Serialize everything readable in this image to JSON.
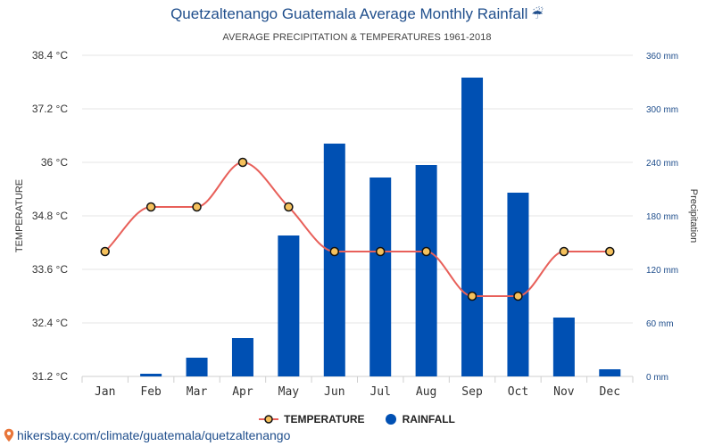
{
  "header": {
    "title": "Quetzaltenango Guatemala Average Monthly Rainfall",
    "title_icon": "☔",
    "subtitle": "AVERAGE PRECIPITATION & TEMPERATURES 1961-2018"
  },
  "legend": {
    "temperature_label": "TEMPERATURE",
    "rainfall_label": "RAINFALL"
  },
  "footer": {
    "link_text": "hikersbay.com/climate/guatemala/quetzaltenango"
  },
  "colors": {
    "bar": "#0050b3",
    "line": "#e8605a",
    "marker_fill": "#f5c15c",
    "grid": "#e6e6e6",
    "title": "#1f4e8c"
  },
  "chart_data": {
    "type": "bar+line",
    "categories": [
      "Jan",
      "Feb",
      "Mar",
      "Apr",
      "May",
      "Jun",
      "Jul",
      "Aug",
      "Sep",
      "Oct",
      "Nov",
      "Dec"
    ],
    "series": [
      {
        "name": "RAINFALL",
        "type": "bar",
        "axis": "right",
        "unit": "mm",
        "values": [
          0,
          3,
          21,
          43,
          158,
          261,
          223,
          237,
          335,
          206,
          66,
          8
        ]
      },
      {
        "name": "TEMPERATURE",
        "type": "line",
        "axis": "left",
        "unit": "°C",
        "values": [
          34,
          35,
          35,
          36,
          35,
          34,
          34,
          34,
          33,
          33,
          34,
          34
        ]
      }
    ],
    "left_axis": {
      "title": "TEMPERATURE",
      "range": [
        31.2,
        38.4
      ],
      "ticks": [
        31.2,
        32.4,
        33.6,
        34.8,
        36,
        37.2,
        38.4
      ],
      "tick_labels": [
        "31.2 °C",
        "32.4 °C",
        "33.6 °C",
        "34.8 °C",
        "36 °C",
        "37.2 °C",
        "38.4 °C"
      ]
    },
    "right_axis": {
      "title": "Precipitation",
      "range": [
        0,
        360
      ],
      "ticks": [
        0,
        60,
        120,
        180,
        240,
        300,
        360
      ],
      "tick_labels": [
        "0 mm",
        "60 mm",
        "120 mm",
        "180 mm",
        "240 mm",
        "300 mm",
        "360 mm"
      ]
    },
    "grid": true,
    "legend_position": "bottom-center"
  }
}
